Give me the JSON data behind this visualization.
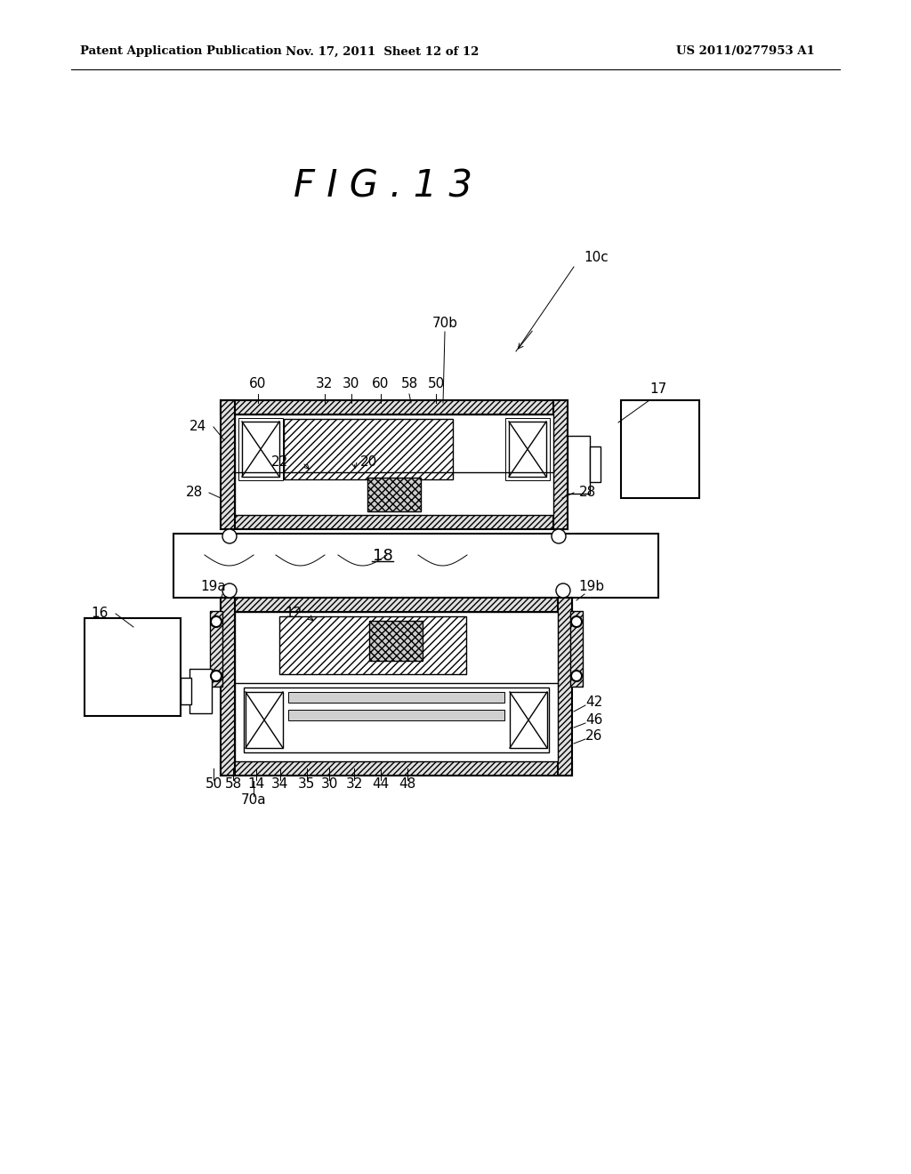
{
  "header_left": "Patent Application Publication",
  "header_mid": "Nov. 17, 2011  Sheet 12 of 12",
  "header_right": "US 2011/0277953 A1",
  "title": "F I G . 1 3",
  "bg_color": "#ffffff"
}
